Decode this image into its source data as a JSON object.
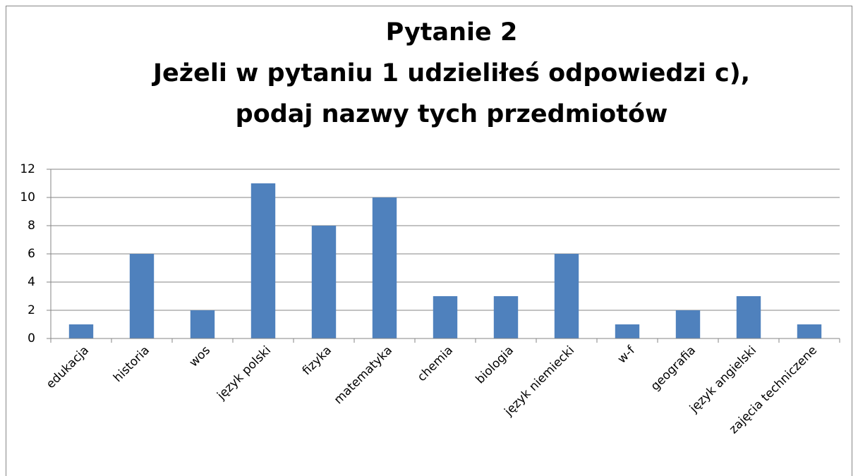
{
  "chart_data": {
    "type": "bar",
    "title": [
      "Pytanie 2",
      "Jeżeli w pytaniu 1 udzieliłeś odpowiedzi c),",
      "podaj nazwy tych przedmiotów"
    ],
    "categories": [
      "edukacja",
      "historia",
      "wos",
      "język polski",
      "fizyka",
      "matematyka",
      "chemia",
      "biologia",
      "język niemiecki",
      "w-f",
      "geografia",
      "język angielski",
      "zajęcia techniczene"
    ],
    "values": [
      1,
      6,
      2,
      11,
      8,
      10,
      3,
      3,
      6,
      1,
      2,
      3,
      1
    ],
    "color": "#4f81bd",
    "ylim": [
      0,
      12
    ],
    "yticks": [
      0,
      2,
      4,
      6,
      8,
      10,
      12
    ],
    "grid": true
  }
}
